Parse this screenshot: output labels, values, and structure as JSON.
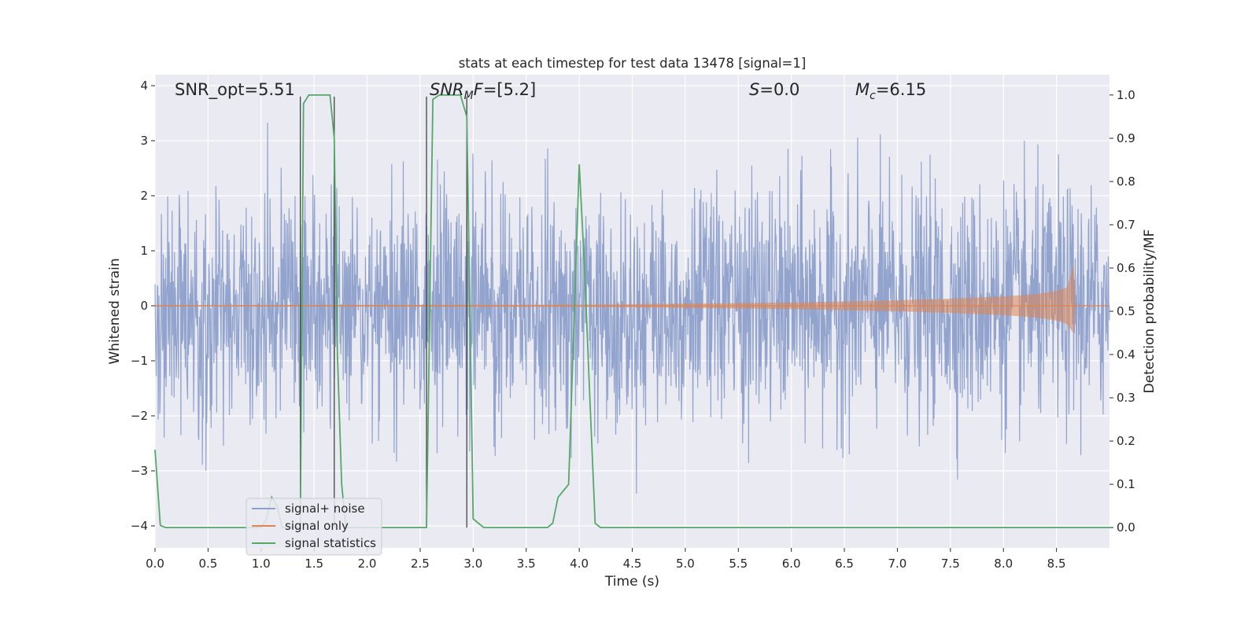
{
  "chart_data": {
    "type": "line",
    "title": "stats at each timestep for test data 13478 [signal=1]",
    "xlabel": "Time (s)",
    "ylabel": "Whitened strain",
    "ylabel_right": "Detection probability/MF",
    "xlim": [
      0.0,
      9.0
    ],
    "ylim": [
      -4.4,
      4.2
    ],
    "ylim_right": [
      -0.047,
      1.047
    ],
    "x_ticks": [
      0.0,
      0.5,
      1.0,
      1.5,
      2.0,
      2.5,
      3.0,
      3.5,
      4.0,
      4.5,
      5.0,
      5.5,
      6.0,
      6.5,
      7.0,
      7.5,
      8.0,
      8.5
    ],
    "x_tick_labels": [
      "0.0",
      "0.5",
      "1.0",
      "1.5",
      "2.0",
      "2.5",
      "3.0",
      "3.5",
      "4.0",
      "4.5",
      "5.0",
      "5.5",
      "6.0",
      "6.5",
      "7.0",
      "7.5",
      "8.0",
      "8.5"
    ],
    "y_ticks": [
      -4,
      -3,
      -2,
      -1,
      0,
      1,
      2,
      3,
      4
    ],
    "y_tick_labels": [
      "−4",
      "−3",
      "−2",
      "−1",
      "0",
      "1",
      "2",
      "3",
      "4"
    ],
    "y_ticks_right": [
      0.0,
      0.1,
      0.2,
      0.3,
      0.4,
      0.5,
      0.6,
      0.7,
      0.8,
      0.9,
      1.0
    ],
    "y_tick_labels_right": [
      "0.0",
      "0.1",
      "0.2",
      "0.3",
      "0.4",
      "0.5",
      "0.6",
      "0.7",
      "0.8",
      "0.9",
      "1.0"
    ],
    "grid": true,
    "legend_position": "lower-left",
    "annotations": [
      {
        "text": "SNR_opt=5.51",
        "x": 0.2
      },
      {
        "text": "SNR_MF=[5.2]",
        "x": 2.6
      },
      {
        "text": "S=0.0",
        "x": 5.6
      },
      {
        "text": "M_c=6.15",
        "x": 6.6
      }
    ],
    "annotation_parts": [
      {
        "main": "SNR_opt=5.51"
      },
      {
        "italic": "SNR",
        "sub": "M",
        "italic2": "F",
        "rest": "=[5.2]"
      },
      {
        "italic": "S",
        "rest": "=0.0"
      },
      {
        "italic": "M",
        "sub": "c",
        "rest": "=6.15"
      }
    ],
    "vertical_lines_x": [
      1.37,
      1.69,
      2.56,
      2.94
    ],
    "series": [
      {
        "name": "signal+ noise",
        "color": "#8da0cb",
        "description_range": "white noise, typical amplitude about ±1.5, peaks near ±3.4",
        "envelope_x": [
          0.0,
          9.0
        ],
        "envelope_y": [
          -1.5,
          1.5
        ]
      },
      {
        "name": "signal only",
        "color": "#dd8452",
        "x": [
          0.0,
          4.0,
          5.0,
          6.0,
          7.0,
          7.5,
          8.0,
          8.3,
          8.5,
          8.6,
          8.66,
          8.68,
          9.0
        ],
        "amplitude": [
          0.01,
          0.02,
          0.04,
          0.06,
          0.1,
          0.13,
          0.17,
          0.21,
          0.27,
          0.33,
          0.75,
          0.0,
          0.0
        ]
      },
      {
        "name": "signal statistics",
        "color": "#55a868",
        "x": [
          0.0,
          0.05,
          0.1,
          0.2,
          0.3,
          0.4,
          0.5,
          0.6,
          0.7,
          0.8,
          0.9,
          1.0,
          1.05,
          1.1,
          1.15,
          1.2,
          1.3,
          1.37,
          1.4,
          1.45,
          1.5,
          1.55,
          1.6,
          1.65,
          1.69,
          1.72,
          1.76,
          1.8,
          1.85,
          1.9,
          2.0,
          2.1,
          2.2,
          2.3,
          2.4,
          2.5,
          2.56,
          2.62,
          2.68,
          2.75,
          2.82,
          2.88,
          2.94,
          3.0,
          3.05,
          3.1,
          3.2,
          3.3,
          3.4,
          3.5,
          3.6,
          3.7,
          3.75,
          3.8,
          3.9,
          4.0,
          4.05,
          4.1,
          4.15,
          4.2,
          4.3,
          4.5,
          5.0,
          5.5,
          6.0,
          6.5,
          7.0,
          7.5,
          8.0,
          8.5,
          9.0
        ],
        "y": [
          0.18,
          0.005,
          0.0,
          0.0,
          0.0,
          0.0,
          0.0,
          0.0,
          0.0,
          0.0,
          0.0,
          0.0,
          0.02,
          0.07,
          0.05,
          0.0,
          0.0,
          0.0,
          0.98,
          1.0,
          1.0,
          1.0,
          1.0,
          1.0,
          0.9,
          0.4,
          0.1,
          0.0,
          0.0,
          0.0,
          0.0,
          0.0,
          0.0,
          0.0,
          0.0,
          0.0,
          0.0,
          0.99,
          1.0,
          1.0,
          1.0,
          1.0,
          0.95,
          0.02,
          0.01,
          0.0,
          0.0,
          0.0,
          0.0,
          0.0,
          0.0,
          0.0,
          0.01,
          0.07,
          0.1,
          0.84,
          0.6,
          0.3,
          0.01,
          0.0,
          0.0,
          0.0,
          0.0,
          0.0,
          0.0,
          0.0,
          0.0,
          0.0,
          0.0,
          0.0,
          0.0
        ]
      }
    ]
  }
}
